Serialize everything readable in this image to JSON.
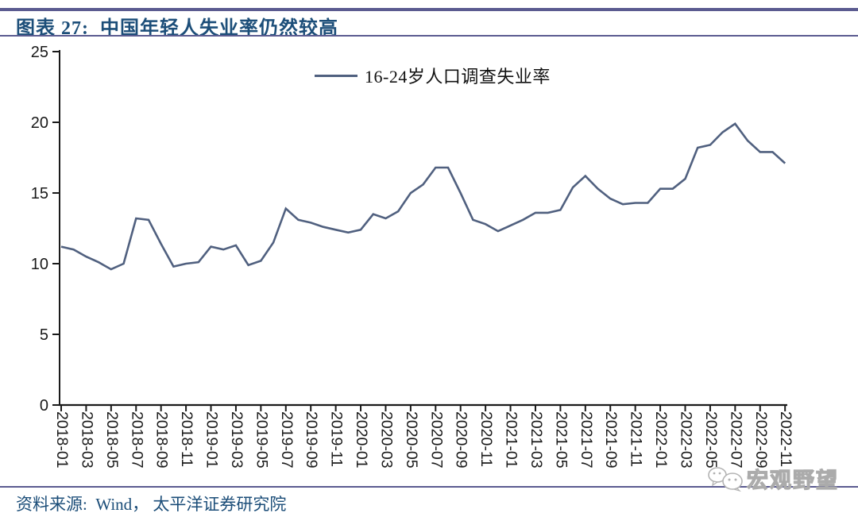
{
  "page": {
    "title": "图表 27:  中国年轻人失业率仍然较高",
    "source": "资料来源:  Wind， 太平洋证券研究院",
    "watermark_text": "宏观野望"
  },
  "colors": {
    "title_text": "#1c4e79",
    "header_rule": "#5b5b90",
    "series_line": "#50607f",
    "axis": "#1a1a1a",
    "watermark": "#ababab"
  },
  "chart_data": {
    "type": "line",
    "title": "",
    "xlabel": "",
    "ylabel": "",
    "grid": false,
    "legend_position": "top-center",
    "ylim": [
      0,
      25
    ],
    "yticks": [
      0,
      5,
      10,
      15,
      20,
      25
    ],
    "x": [
      "2018-01",
      "2018-02",
      "2018-03",
      "2018-04",
      "2018-05",
      "2018-06",
      "2018-07",
      "2018-08",
      "2018-09",
      "2018-10",
      "2018-11",
      "2018-12",
      "2019-01",
      "2019-02",
      "2019-03",
      "2019-04",
      "2019-05",
      "2019-06",
      "2019-07",
      "2019-08",
      "2019-09",
      "2019-10",
      "2019-11",
      "2019-12",
      "2020-01",
      "2020-02",
      "2020-03",
      "2020-04",
      "2020-05",
      "2020-06",
      "2020-07",
      "2020-08",
      "2020-09",
      "2020-10",
      "2020-11",
      "2020-12",
      "2021-01",
      "2021-02",
      "2021-03",
      "2021-04",
      "2021-05",
      "2021-06",
      "2021-07",
      "2021-08",
      "2021-09",
      "2021-10",
      "2021-11",
      "2021-12",
      "2022-01",
      "2022-02",
      "2022-03",
      "2022-04",
      "2022-05",
      "2022-06",
      "2022-07",
      "2022-08",
      "2022-09",
      "2022-10",
      "2022-11"
    ],
    "x_tick_labels": [
      "2018-01",
      "2018-03",
      "2018-05",
      "2018-07",
      "2018-09",
      "2018-11",
      "2019-01",
      "2019-03",
      "2019-05",
      "2019-07",
      "2019-09",
      "2019-11",
      "2020-01",
      "2020-03",
      "2020-05",
      "2020-07",
      "2020-09",
      "2020-11",
      "2021-01",
      "2021-03",
      "2021-05",
      "2021-07",
      "2021-09",
      "2021-11",
      "2022-01",
      "2022-03",
      "2022-05",
      "2022-07",
      "2022-09",
      "2022-11"
    ],
    "series": [
      {
        "name": "16-24岁人口调查失业率",
        "color": "#50607f",
        "values": [
          11.2,
          11.0,
          10.5,
          10.1,
          9.6,
          10.0,
          13.2,
          13.1,
          11.4,
          9.8,
          10.0,
          10.1,
          11.2,
          11.0,
          11.3,
          9.9,
          10.2,
          11.5,
          13.9,
          13.1,
          12.9,
          12.6,
          12.4,
          12.2,
          12.4,
          13.5,
          13.2,
          13.7,
          15.0,
          15.6,
          16.8,
          16.8,
          15.0,
          13.1,
          12.8,
          12.3,
          12.7,
          13.1,
          13.6,
          13.6,
          13.8,
          15.4,
          16.2,
          15.3,
          14.6,
          14.2,
          14.3,
          14.3,
          15.3,
          15.3,
          16.0,
          18.2,
          18.4,
          19.3,
          19.9,
          18.7,
          17.9,
          17.9,
          17.1
        ]
      }
    ]
  }
}
